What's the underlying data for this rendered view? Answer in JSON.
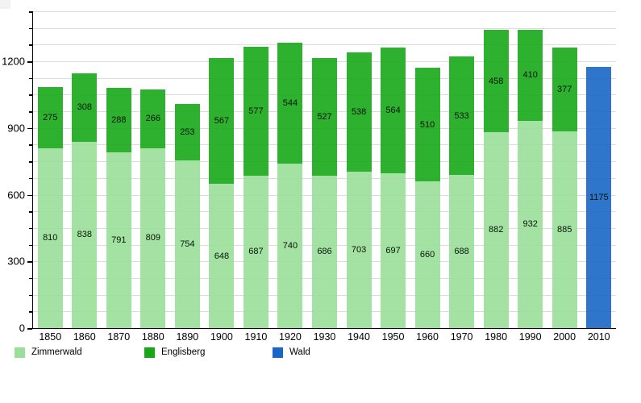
{
  "chart_data": {
    "type": "bar",
    "stacked": true,
    "title": "",
    "xlabel": "",
    "ylabel": "",
    "categories": [
      "1850",
      "1860",
      "1870",
      "1880",
      "1890",
      "1900",
      "1910",
      "1920",
      "1930",
      "1940",
      "1950",
      "1960",
      "1970",
      "1980",
      "1990",
      "2000",
      "2010"
    ],
    "series": [
      {
        "name": "Zimmerwald",
        "color": "#99df99",
        "values": [
          810,
          838,
          791,
          809,
          754,
          648,
          687,
          740,
          686,
          703,
          697,
          660,
          688,
          882,
          932,
          885,
          0
        ]
      },
      {
        "name": "Englisberg",
        "color": "#17a817",
        "values": [
          275,
          308,
          288,
          266,
          253,
          567,
          577,
          544,
          527,
          538,
          564,
          510,
          533,
          458,
          410,
          377,
          0
        ]
      },
      {
        "name": "Wald",
        "color": "#1966c7",
        "values": [
          0,
          0,
          0,
          0,
          0,
          0,
          0,
          0,
          0,
          0,
          0,
          0,
          0,
          0,
          0,
          0,
          1175
        ]
      }
    ],
    "ylim": [
      0,
      1425
    ],
    "yticks": [
      0,
      300,
      600,
      900,
      1200
    ],
    "minor_tick_step": 75,
    "grid": "horizontal-minor-every-75",
    "grid_color": "#dcdcdc",
    "axis_color": "#000000",
    "value_labels": "shown-centered-in-segments",
    "legend_position": "bottom-left"
  }
}
